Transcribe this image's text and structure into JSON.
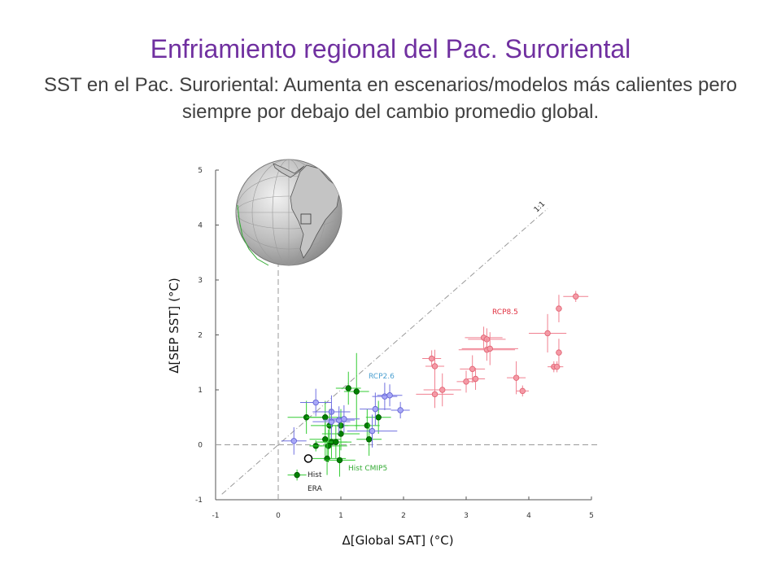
{
  "slide": {
    "title": "Enfriamiento regional del Pac. Suroriental",
    "subtitle": "SST en el Pac. Suroriental: Aumenta en escenarios/modelos más calientes pero siempre por debajo del cambio promedio global."
  },
  "chart_data": {
    "type": "scatter",
    "xlabel": "Δ[Global SAT]  (°C)",
    "ylabel": "Δ[SEP SST]  (°C)",
    "xlim": [
      -1,
      5
    ],
    "ylim": [
      -1,
      5
    ],
    "xticks": [
      "-1",
      "0",
      "1",
      "2",
      "3",
      "4",
      "5"
    ],
    "yticks": [
      "-1",
      "0",
      "1",
      "2",
      "3",
      "4",
      "5"
    ],
    "grid": false,
    "annotations": {
      "one_to_one": "1:1",
      "hist_era_line1": "Hist",
      "hist_era_line2": "ERA",
      "hist_cmip5": "Hist CMIP5",
      "rcp26": "RCP2.6",
      "rcp85": "RCP8.5"
    },
    "colors": {
      "hist_cmip5": "#008000",
      "rcp26": "#8080ff",
      "rcp85": "#ff6d80",
      "hist_era": "#000000"
    },
    "series": [
      {
        "label": "Hist CMIP5",
        "points": [
          {
            "x": 0.3,
            "y": -0.55,
            "xe": 0.15,
            "ye": 0.1
          },
          {
            "x": 0.6,
            "y": -0.02,
            "xe": 0.1,
            "ye": 0.1
          },
          {
            "x": 0.45,
            "y": 0.5,
            "xe": 0.3,
            "ye": 0.3
          },
          {
            "x": 0.75,
            "y": 0.5,
            "xe": 0.3,
            "ye": 0.3
          },
          {
            "x": 0.82,
            "y": 0.35,
            "xe": 0.3,
            "ye": 0.3
          },
          {
            "x": 0.75,
            "y": 0.1,
            "xe": 0.25,
            "ye": 0.3
          },
          {
            "x": 0.85,
            "y": 0.05,
            "xe": 0.25,
            "ye": 0.3
          },
          {
            "x": 0.92,
            "y": 0.05,
            "xe": 0.25,
            "ye": 0.3
          },
          {
            "x": 0.8,
            "y": -0.02,
            "xe": 0.3,
            "ye": 0.3
          },
          {
            "x": 0.78,
            "y": -0.25,
            "xe": 0.3,
            "ye": 0.3
          },
          {
            "x": 0.98,
            "y": -0.28,
            "xe": 0.25,
            "ye": 0.3
          },
          {
            "x": 1.0,
            "y": 0.35,
            "xe": 0.3,
            "ye": 0.3
          },
          {
            "x": 1.0,
            "y": 0.2,
            "xe": 0.3,
            "ye": 0.3
          },
          {
            "x": 1.12,
            "y": 1.03,
            "xe": 0.2,
            "ye": 0.3
          },
          {
            "x": 1.25,
            "y": 0.97,
            "xe": 0.2,
            "ye": 0.7
          },
          {
            "x": 1.42,
            "y": 0.35,
            "xe": 0.2,
            "ye": 0.3
          },
          {
            "x": 1.6,
            "y": 0.5,
            "xe": 0.2,
            "ye": 0.3
          },
          {
            "x": 1.45,
            "y": 0.1,
            "xe": 0.2,
            "ye": 0.3
          }
        ]
      },
      {
        "label": "RCP2.6",
        "points": [
          {
            "x": 0.25,
            "y": 0.07,
            "xe": 0.2,
            "ye": 0.25
          },
          {
            "x": 0.6,
            "y": 0.77,
            "xe": 0.25,
            "ye": 0.25
          },
          {
            "x": 0.85,
            "y": 0.6,
            "xe": 0.3,
            "ye": 0.3
          },
          {
            "x": 0.85,
            "y": 0.42,
            "xe": 0.3,
            "ye": 0.3
          },
          {
            "x": 0.97,
            "y": 0.45,
            "xe": 0.25,
            "ye": 0.25
          },
          {
            "x": 1.05,
            "y": 0.47,
            "xe": 0.25,
            "ye": 0.25
          },
          {
            "x": 1.5,
            "y": 0.25,
            "xe": 0.4,
            "ye": 0.3
          },
          {
            "x": 1.55,
            "y": 0.65,
            "xe": 0.25,
            "ye": 0.3
          },
          {
            "x": 1.7,
            "y": 0.88,
            "xe": 0.2,
            "ye": 0.25
          },
          {
            "x": 1.78,
            "y": 0.9,
            "xe": 0.2,
            "ye": 0.2
          },
          {
            "x": 1.95,
            "y": 0.63,
            "xe": 0.15,
            "ye": 0.15
          }
        ]
      },
      {
        "label": "RCP8.5",
        "points": [
          {
            "x": 2.45,
            "y": 1.57,
            "xe": 0.15,
            "ye": 0.15
          },
          {
            "x": 2.5,
            "y": 1.43,
            "xe": 0.15,
            "ye": 0.3
          },
          {
            "x": 2.5,
            "y": 0.92,
            "xe": 0.3,
            "ye": 0.25
          },
          {
            "x": 2.62,
            "y": 1.0,
            "xe": 0.3,
            "ye": 0.3
          },
          {
            "x": 3.0,
            "y": 1.15,
            "xe": 0.15,
            "ye": 0.2
          },
          {
            "x": 3.1,
            "y": 1.38,
            "xe": 0.2,
            "ye": 0.25
          },
          {
            "x": 3.15,
            "y": 1.2,
            "xe": 0.15,
            "ye": 0.2
          },
          {
            "x": 3.28,
            "y": 1.95,
            "xe": 0.3,
            "ye": 0.2
          },
          {
            "x": 3.33,
            "y": 1.92,
            "xe": 0.3,
            "ye": 0.2
          },
          {
            "x": 3.33,
            "y": 1.73,
            "xe": 0.45,
            "ye": 0.2
          },
          {
            "x": 3.38,
            "y": 1.75,
            "xe": 0.45,
            "ye": 0.3
          },
          {
            "x": 3.8,
            "y": 1.22,
            "xe": 0.15,
            "ye": 0.3
          },
          {
            "x": 3.9,
            "y": 0.98,
            "xe": 0.1,
            "ye": 0.1
          },
          {
            "x": 4.3,
            "y": 2.03,
            "xe": 0.3,
            "ye": 0.35
          },
          {
            "x": 4.4,
            "y": 1.42,
            "xe": 0.1,
            "ye": 0.1
          },
          {
            "x": 4.45,
            "y": 1.42,
            "xe": 0.1,
            "ye": 0.1
          },
          {
            "x": 4.48,
            "y": 1.68,
            "xe": 0.05,
            "ye": 0.25
          },
          {
            "x": 4.48,
            "y": 2.48,
            "xe": 0.05,
            "ye": 0.25
          },
          {
            "x": 4.75,
            "y": 2.7,
            "xe": 0.2,
            "ye": 0.1
          }
        ]
      },
      {
        "label": "Hist ERA",
        "points": [
          {
            "x": 0.48,
            "y": -0.25,
            "xe": 0.0,
            "ye": 0.0
          }
        ]
      }
    ]
  }
}
